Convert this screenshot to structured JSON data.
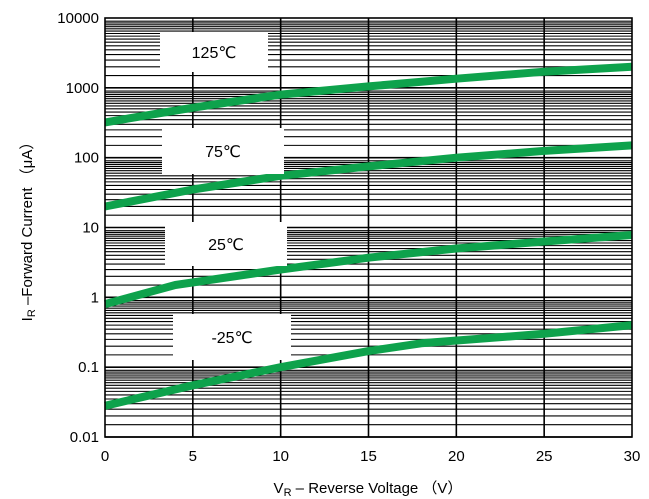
{
  "chart_data": {
    "type": "line",
    "xlabel": {
      "main": "V",
      "sub": "R",
      "rest": " – Reverse Voltage  （V）"
    },
    "ylabel": {
      "main": "I",
      "sub": "R",
      "rest": " –Forward Current  （μA）"
    },
    "xlim": [
      0,
      30
    ],
    "ylim": [
      0.01,
      10000
    ],
    "y_scale": "log",
    "grid": true,
    "x_ticks": [
      "0",
      "5",
      "10",
      "15",
      "20",
      "25",
      "30"
    ],
    "y_ticks": [
      "0.01",
      "0.1",
      "1",
      "10",
      "100",
      "1000",
      "10000"
    ],
    "colors": {
      "series": "#0ea24c",
      "grid": "#000000",
      "label_box": "#ffffff"
    },
    "series": [
      {
        "name": "125℃",
        "x": [
          0,
          5,
          10,
          15,
          20,
          25,
          30
        ],
        "y": [
          320,
          520,
          800,
          1050,
          1350,
          1700,
          2000
        ]
      },
      {
        "name": "75℃",
        "x": [
          0,
          5,
          10,
          15,
          20,
          25,
          30
        ],
        "y": [
          20,
          35,
          55,
          75,
          100,
          125,
          150
        ]
      },
      {
        "name": "25℃",
        "x": [
          0,
          4,
          10,
          15,
          20,
          25,
          30
        ],
        "y": [
          0.8,
          1.5,
          2.5,
          3.7,
          5.0,
          6.3,
          7.8
        ]
      },
      {
        "name": "-25℃",
        "x": [
          0,
          5,
          10,
          15,
          18,
          25,
          30
        ],
        "y": [
          0.028,
          0.055,
          0.1,
          0.17,
          0.22,
          0.3,
          0.4
        ]
      }
    ]
  }
}
